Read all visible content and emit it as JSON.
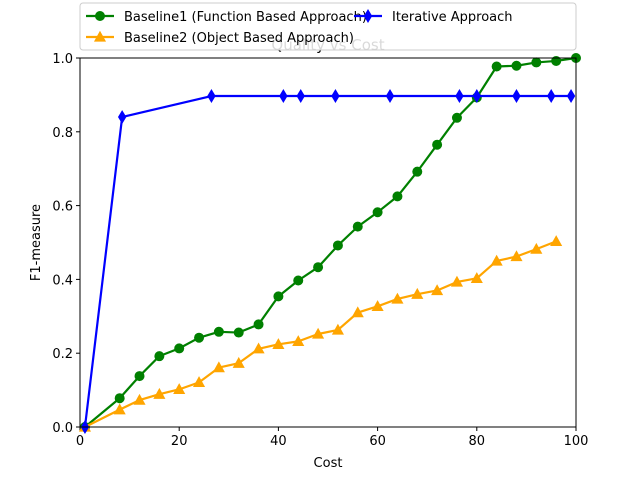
{
  "chart_data": {
    "type": "line",
    "title": "Quality vs Cost",
    "xlabel": "Cost",
    "ylabel": "F1-measure",
    "xlim": [
      0,
      100
    ],
    "ylim": [
      0,
      1.0
    ],
    "xticks": [
      0,
      20,
      40,
      60,
      80,
      100
    ],
    "xtick_labels": [
      "0",
      "20",
      "40",
      "60",
      "80",
      "100"
    ],
    "yticks": [
      0.0,
      0.2,
      0.4,
      0.6,
      0.8,
      1.0
    ],
    "ytick_labels": [
      "0.0",
      "0.2",
      "0.4",
      "0.6",
      "0.8",
      "1.0"
    ],
    "grid": false,
    "legend_position": "top-center, above axes",
    "series": [
      {
        "name": "Baseline1 (Function Based Approach)",
        "color": "#008000",
        "marker": "circle",
        "x": [
          1,
          8,
          12,
          16,
          20,
          24,
          28,
          32,
          36,
          40,
          44,
          48,
          52,
          56,
          60,
          64,
          68,
          72,
          76,
          80,
          84,
          88,
          92,
          96,
          100
        ],
        "y": [
          0.0,
          0.078,
          0.138,
          0.192,
          0.213,
          0.242,
          0.258,
          0.256,
          0.278,
          0.354,
          0.397,
          0.433,
          0.492,
          0.543,
          0.582,
          0.625,
          0.692,
          0.765,
          0.838,
          0.893,
          0.977,
          0.979,
          0.988,
          0.992,
          1.0
        ]
      },
      {
        "name": "Baseline2 (Object Based Approach)",
        "color": "#ffa500",
        "marker": "triangle",
        "x": [
          1,
          8,
          12,
          16,
          20,
          24,
          28,
          32,
          36,
          40,
          44,
          48,
          52,
          56,
          60,
          64,
          68,
          72,
          76,
          80,
          84,
          88,
          92,
          96
        ],
        "y": [
          0.0,
          0.047,
          0.073,
          0.089,
          0.102,
          0.121,
          0.161,
          0.173,
          0.212,
          0.224,
          0.232,
          0.252,
          0.263,
          0.31,
          0.327,
          0.347,
          0.36,
          0.37,
          0.393,
          0.403,
          0.45,
          0.462,
          0.482,
          0.503
        ]
      },
      {
        "name": "Iterative Approach",
        "color": "#0000ff",
        "marker": "diamond",
        "x": [
          1,
          8.5,
          26.5,
          41,
          44.5,
          51.5,
          62.5,
          76.5,
          80,
          88,
          95,
          99
        ],
        "y": [
          0.0,
          0.84,
          0.897,
          0.897,
          0.897,
          0.897,
          0.897,
          0.897,
          0.897,
          0.897,
          0.897,
          0.897
        ]
      }
    ]
  }
}
